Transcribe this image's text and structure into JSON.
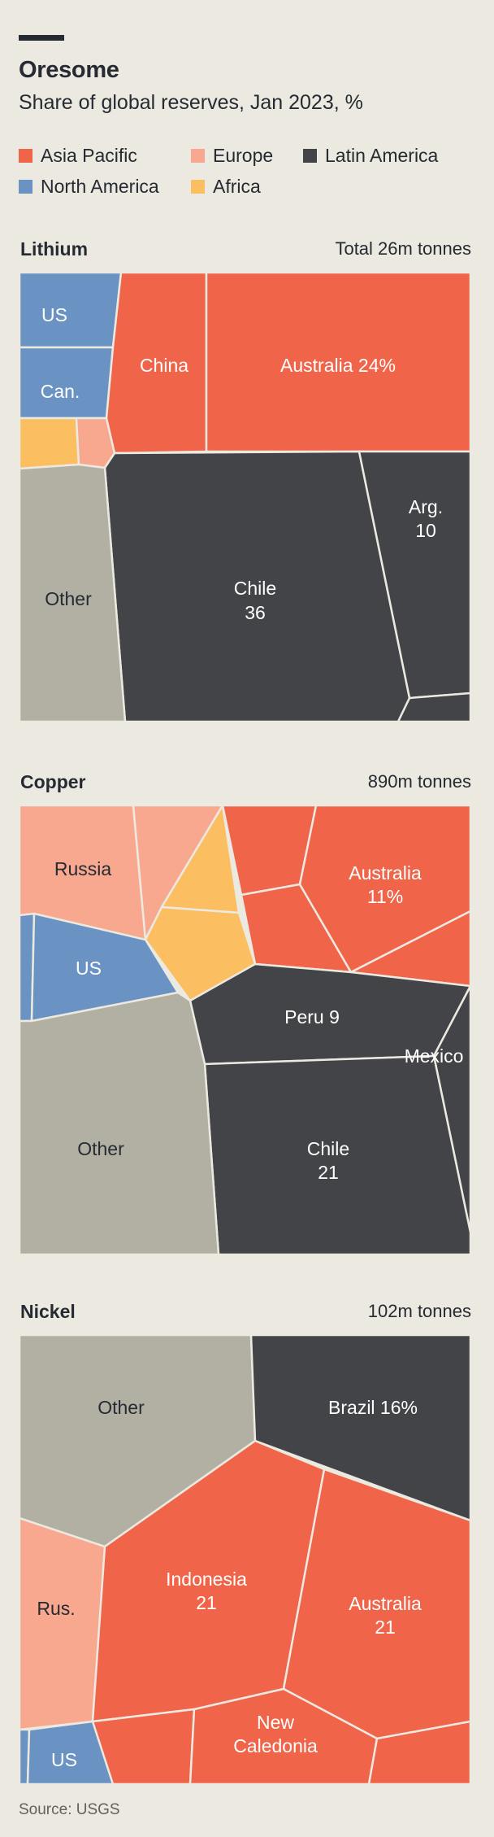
{
  "header": {
    "title": "Oresome",
    "subtitle": "Share of global reserves, Jan 2023, %"
  },
  "legend": [
    {
      "label": "Asia Pacific",
      "color": "#f0644a"
    },
    {
      "label": "Europe",
      "color": "#f7a88e"
    },
    {
      "label": "Latin America",
      "color": "#434447"
    },
    {
      "label": "North America",
      "color": "#6a93c3"
    },
    {
      "label": "Africa",
      "color": "#fbbf62"
    }
  ],
  "source": "Source: USGS",
  "chart_data": [
    {
      "type": "treemap",
      "title": "Lithium",
      "total": "Total 26m tonnes",
      "cells": [
        {
          "label": "US",
          "region": "North America"
        },
        {
          "label": "Can.",
          "region": "North America"
        },
        {
          "label": "",
          "region": "Africa"
        },
        {
          "label": "",
          "region": "Europe"
        },
        {
          "label": "China",
          "region": "Asia Pacific"
        },
        {
          "label": "Australia 24%",
          "value": 24,
          "region": "Asia Pacific"
        },
        {
          "label": "Chile",
          "value_label": "36",
          "value": 36,
          "region": "Latin America"
        },
        {
          "label": "Arg.",
          "value_label": "10",
          "value": 10,
          "region": "Latin America"
        },
        {
          "label": "",
          "region": "Latin America"
        },
        {
          "label": "Other",
          "region": "Other"
        }
      ]
    },
    {
      "type": "treemap",
      "title": "Copper",
      "total": "890m tonnes",
      "cells": [
        {
          "label": "Russia",
          "region": "Europe"
        },
        {
          "label": "",
          "region": "Europe"
        },
        {
          "label": "",
          "region": "Africa"
        },
        {
          "label": "",
          "region": "Africa"
        },
        {
          "label": "",
          "region": "Asia Pacific"
        },
        {
          "label": "",
          "region": "Asia Pacific"
        },
        {
          "label": "Australia",
          "value_label": "11%",
          "value": 11,
          "region": "Asia Pacific"
        },
        {
          "label": "",
          "region": "Asia Pacific"
        },
        {
          "label": "",
          "region": "North America"
        },
        {
          "label": "US",
          "region": "North America"
        },
        {
          "label": "Peru 9",
          "value": 9,
          "region": "Latin America"
        },
        {
          "label": "Mexico",
          "region": "Latin America"
        },
        {
          "label": "Chile",
          "value_label": "21",
          "value": 21,
          "region": "Latin America"
        },
        {
          "label": "Other",
          "region": "Other"
        }
      ]
    },
    {
      "type": "treemap",
      "title": "Nickel",
      "total": "102m tonnes",
      "cells": [
        {
          "label": "Other",
          "region": "Other"
        },
        {
          "label": "Brazil 16%",
          "value": 16,
          "region": "Latin America"
        },
        {
          "label": "Rus.",
          "region": "Europe"
        },
        {
          "label": "Indonesia",
          "value_label": "21",
          "value": 21,
          "region": "Asia Pacific"
        },
        {
          "label": "Australia",
          "value_label": "21",
          "value": 21,
          "region": "Asia Pacific"
        },
        {
          "label": "",
          "region": "Asia Pacific"
        },
        {
          "label": "New",
          "value_label": "Caledonia",
          "region": "Asia Pacific"
        },
        {
          "label": "",
          "region": "Asia Pacific"
        },
        {
          "label": "",
          "region": "North America"
        },
        {
          "label": "US",
          "region": "North America"
        }
      ]
    }
  ]
}
